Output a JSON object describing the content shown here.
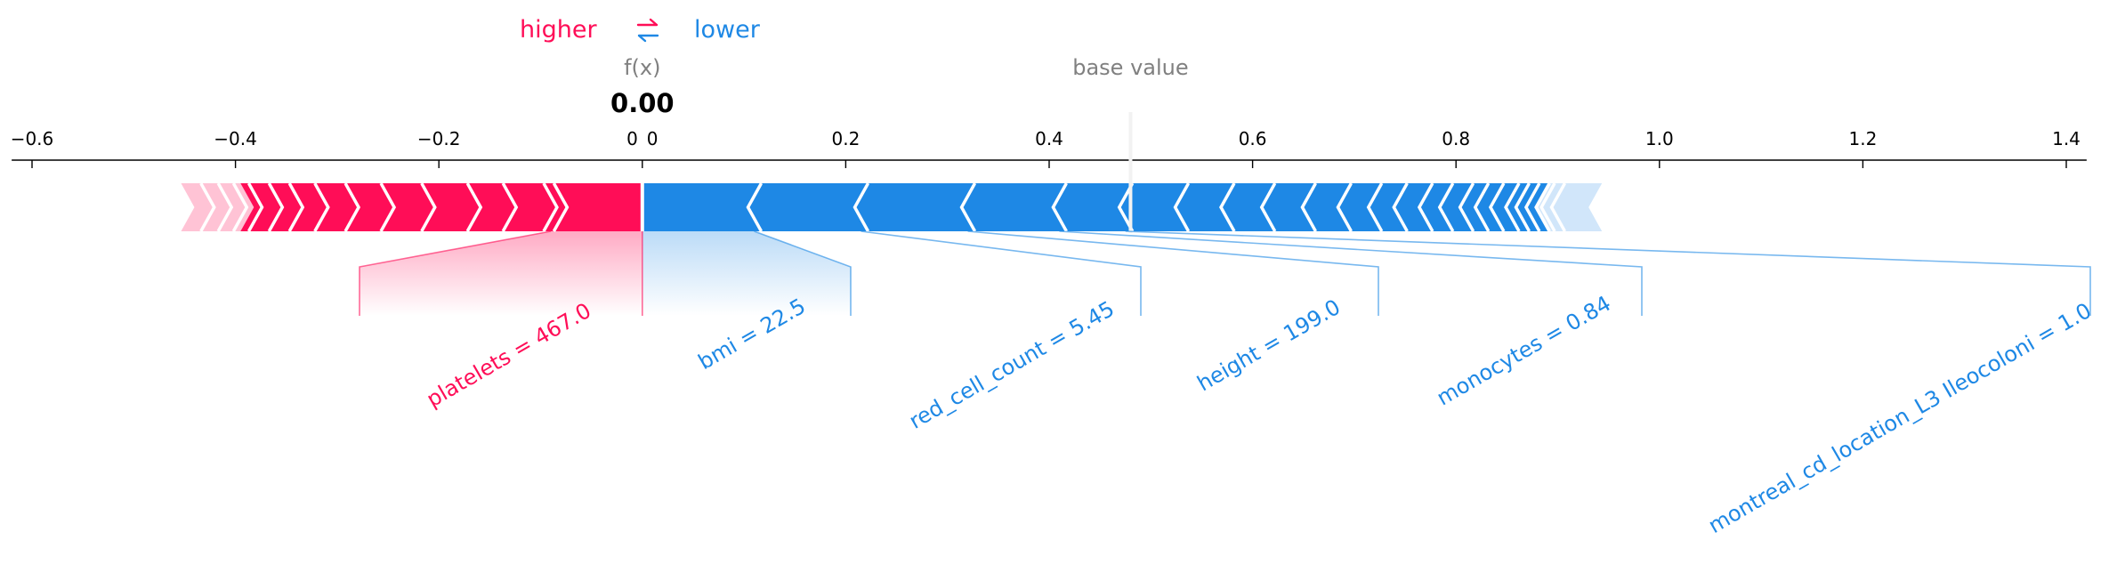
{
  "legend": {
    "higher_label": "higher",
    "lower_label": "lower",
    "higher_color": "#ff0d57",
    "lower_color": "#1e88e5",
    "arrow_icon": "swap-arrows-icon"
  },
  "chart_data": {
    "type": "force",
    "fx_label": "f(x)",
    "fx_value": 0.0,
    "fx_text": "0.00",
    "base_value_label": "base value",
    "base_value": 0.48,
    "xlim": [
      -0.62,
      1.42
    ],
    "ticks": [
      -0.6,
      -0.4,
      -0.2,
      0,
      0.2,
      0.4,
      0.6,
      0.8,
      1.0,
      1.2,
      1.4
    ],
    "tick_labels": [
      "−0.6",
      "−0.4",
      "−0.2",
      "0",
      "0.2",
      "0.4",
      "0.6",
      "0.8",
      "1.0",
      "1.2",
      "1.4"
    ],
    "positive_range": [
      -0.45,
      0.0
    ],
    "negative_range": [
      0.0,
      0.94
    ],
    "positive_feature_boundaries": [
      -0.45,
      -0.427,
      -0.41,
      -0.395,
      -0.38,
      -0.36,
      -0.34,
      -0.315,
      -0.285,
      -0.25,
      -0.21,
      -0.165,
      -0.13,
      -0.09,
      -0.08
    ],
    "negative_feature_boundaries": [
      0.11,
      0.215,
      0.32,
      0.41,
      0.475,
      0.53,
      0.575,
      0.615,
      0.655,
      0.69,
      0.72,
      0.745,
      0.77,
      0.79,
      0.81,
      0.825,
      0.84,
      0.855,
      0.865,
      0.875,
      0.885,
      0.89,
      0.9
    ],
    "labeled_features": [
      {
        "label": "platelets = 467.0",
        "side": "higher",
        "start": -0.09,
        "end": 0.0
      },
      {
        "label": "bmi = 22.5",
        "side": "lower",
        "start": 0.0,
        "end": 0.11
      },
      {
        "label": "red_cell_count = 5.45",
        "side": "lower",
        "start": 0.11,
        "end": 0.215
      },
      {
        "label": "height = 199.0",
        "side": "lower",
        "start": 0.215,
        "end": 0.32
      },
      {
        "label": "monocytes = 0.84",
        "side": "lower",
        "start": 0.32,
        "end": 0.41
      },
      {
        "label": "montreal_cd_location_L3 Ileocoloni = 1.0",
        "side": "lower",
        "start": 0.41,
        "end": 0.475
      }
    ]
  }
}
